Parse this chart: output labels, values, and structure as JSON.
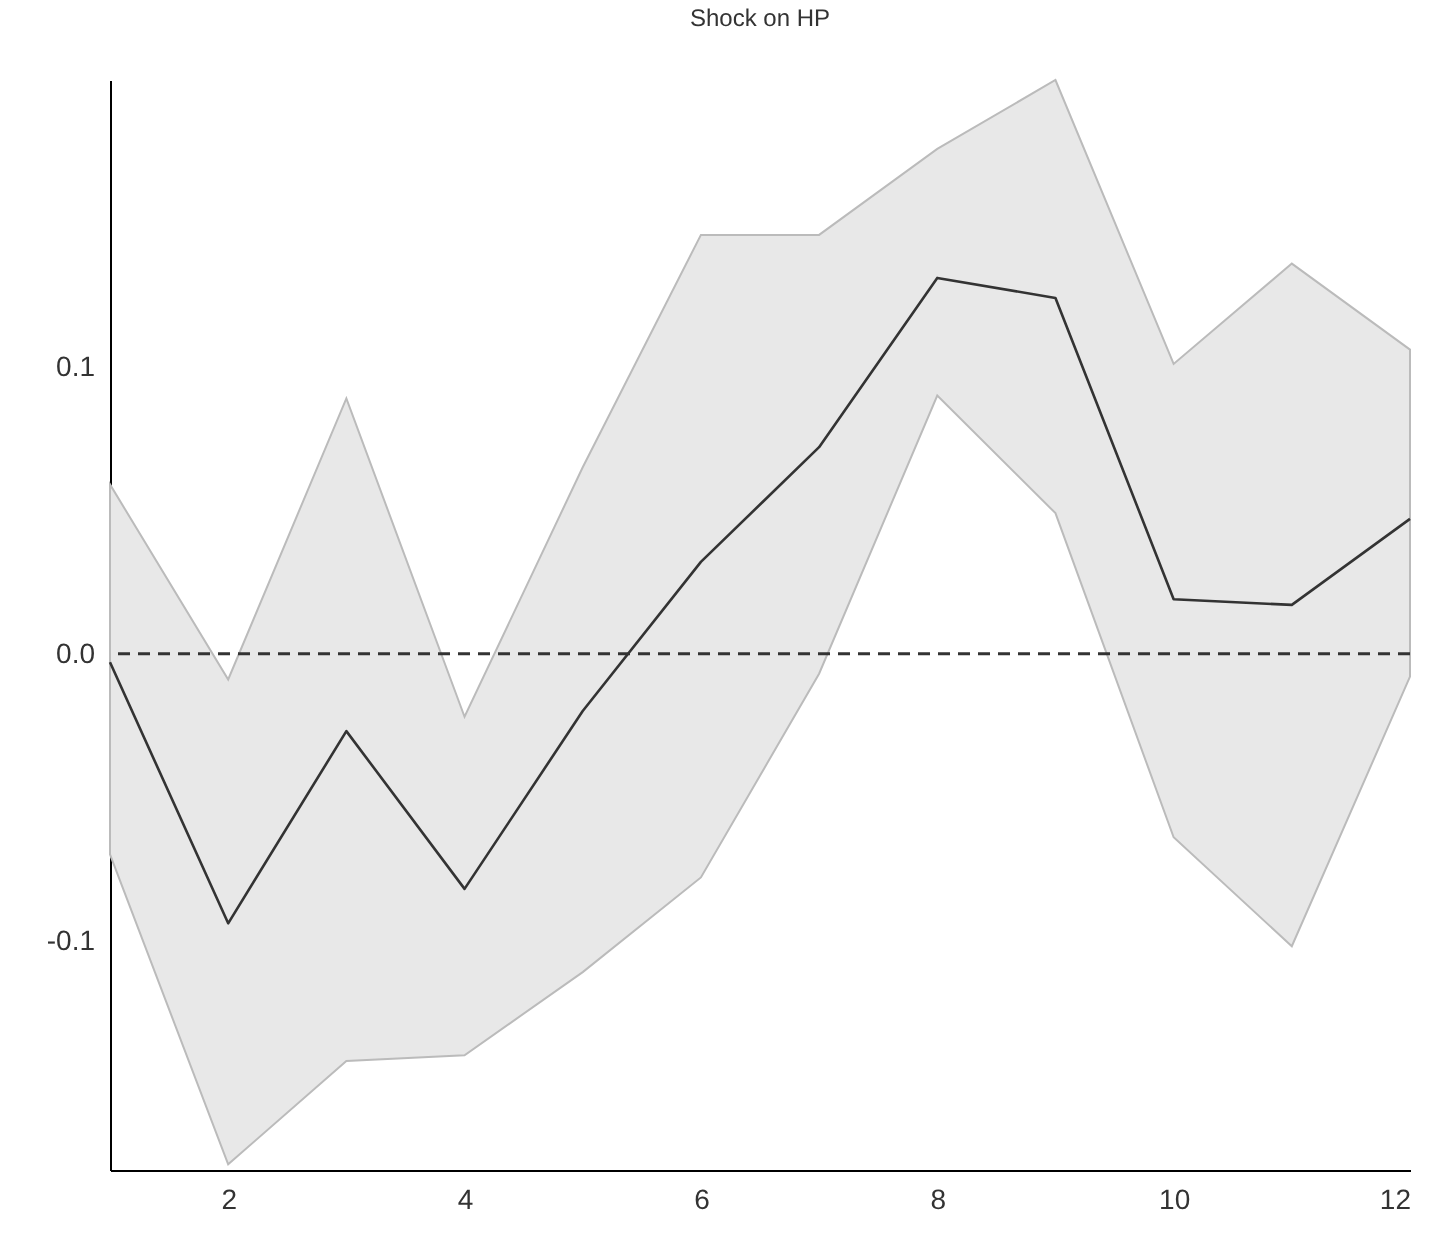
{
  "chart_data": {
    "type": "line",
    "title": "Shock on HP",
    "x": [
      1,
      2,
      3,
      4,
      5,
      6,
      7,
      8,
      9,
      10,
      11,
      12
    ],
    "series": [
      {
        "color": "#333333",
        "values": [
          -0.003,
          -0.094,
          -0.027,
          -0.082,
          -0.02,
          0.032,
          0.072,
          0.131,
          0.124,
          0.019,
          0.017,
          0.047
        ],
        "lower": [
          -0.07,
          -0.178,
          -0.142,
          -0.14,
          -0.111,
          -0.078,
          -0.007,
          0.09,
          0.049,
          -0.064,
          -0.102,
          -0.008
        ],
        "upper": [
          0.059,
          -0.009,
          0.089,
          -0.022,
          0.065,
          0.146,
          0.146,
          0.176,
          0.2,
          0.101,
          0.136,
          0.106
        ]
      }
    ],
    "xlim": [
      1,
      12
    ],
    "xticks": [
      2,
      4,
      6,
      8,
      10,
      12
    ],
    "ylim": [
      -0.18,
      0.2
    ],
    "yticks": [
      -0.1,
      {
        "value": 0,
        "label": "0.0"
      },
      0.1
    ],
    "ref_lines": [
      {
        "axis": "y",
        "value": 0,
        "line_style": "dashed",
        "color": "#333333"
      }
    ],
    "grid": false,
    "marker": "none",
    "line_style": "solid"
  }
}
